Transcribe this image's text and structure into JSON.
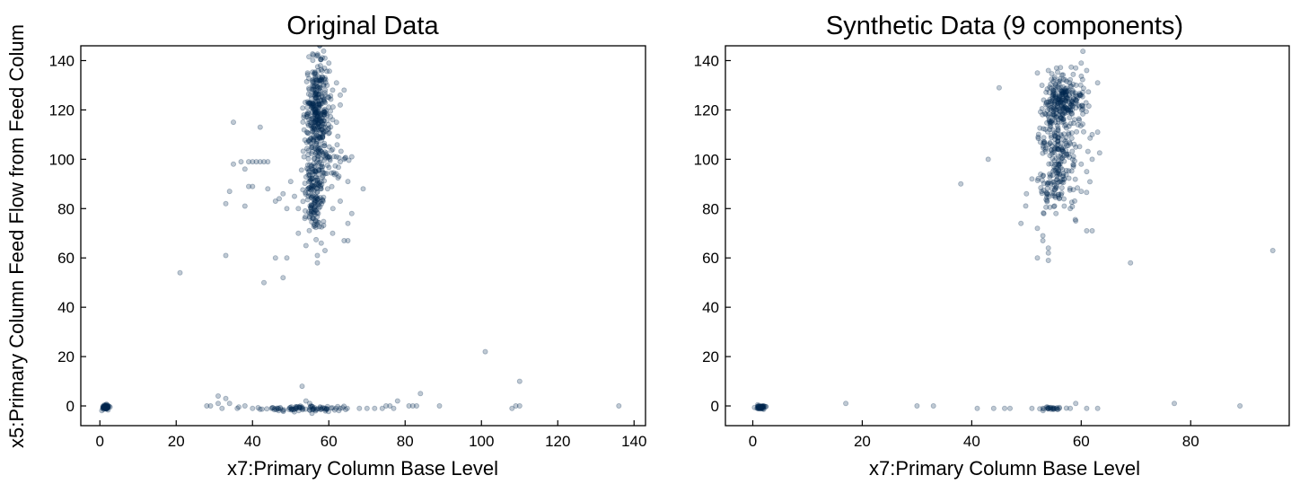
{
  "colors": {
    "point": "#00294f",
    "axis": "#000000",
    "background": "#ffffff"
  },
  "chart_data": [
    {
      "type": "scatter",
      "title": "Original Data",
      "xlabel": "x7:Primary Column Base Level",
      "ylabel": "x5:Primary Column Feed Flow from Feed Colum",
      "xlim": [
        -5,
        143
      ],
      "ylim": [
        -8,
        146
      ],
      "xticks": [
        "0",
        "20",
        "40",
        "60",
        "80",
        "100",
        "120",
        "140"
      ],
      "yticks": [
        "0",
        "20",
        "40",
        "60",
        "80",
        "100",
        "120",
        "140"
      ],
      "grid": false,
      "point_alpha": 0.25,
      "clusters": [
        {
          "x_mean": 1.5,
          "x_sd": 0.5,
          "y_mean": -0.5,
          "y_sd": 0.5,
          "n": 60
        },
        {
          "x_mean": 57,
          "x_sd": 1.6,
          "y_mean": 118,
          "y_sd": 11,
          "n": 380
        },
        {
          "x_mean": 56,
          "x_sd": 1.3,
          "y_mean": 88,
          "y_sd": 7,
          "n": 120
        },
        {
          "x_mean": 56.5,
          "x_sd": 1.0,
          "y_mean": 76,
          "y_sd": 3,
          "n": 30
        },
        {
          "x_mean": 61,
          "x_sd": 2.5,
          "y_mean": 98,
          "y_sd": 6,
          "n": 40
        },
        {
          "x_mean": 54,
          "x_sd": 6,
          "y_mean": -1,
          "y_sd": 0.6,
          "n": 90
        }
      ],
      "points": [
        [
          35,
          115
        ],
        [
          42,
          113
        ],
        [
          35,
          98
        ],
        [
          37,
          99
        ],
        [
          39,
          99
        ],
        [
          40,
          99
        ],
        [
          41,
          99
        ],
        [
          42,
          99
        ],
        [
          43,
          99
        ],
        [
          44,
          99
        ],
        [
          38,
          96
        ],
        [
          39,
          89
        ],
        [
          40,
          89
        ],
        [
          38,
          81
        ],
        [
          33,
          82
        ],
        [
          34,
          87
        ],
        [
          44,
          88
        ],
        [
          46,
          83
        ],
        [
          47,
          84
        ],
        [
          48,
          86
        ],
        [
          50,
          91
        ],
        [
          51,
          85
        ],
        [
          52,
          80
        ],
        [
          49,
          80
        ],
        [
          61,
          104
        ],
        [
          62,
          101
        ],
        [
          63,
          99
        ],
        [
          64,
          100
        ],
        [
          65,
          91
        ],
        [
          66,
          101
        ],
        [
          69,
          88
        ],
        [
          66,
          78
        ],
        [
          65,
          74
        ],
        [
          63,
          83
        ],
        [
          59,
          126
        ],
        [
          60,
          125
        ],
        [
          61,
          116
        ],
        [
          61,
          128
        ],
        [
          62,
          115
        ],
        [
          62,
          131
        ],
        [
          63,
          122
        ],
        [
          64,
          128
        ],
        [
          63,
          126
        ],
        [
          59,
          133
        ],
        [
          60,
          139
        ],
        [
          59,
          127
        ],
        [
          21,
          54
        ],
        [
          33,
          61
        ],
        [
          43,
          50
        ],
        [
          46,
          60
        ],
        [
          48,
          52
        ],
        [
          49,
          60
        ],
        [
          52,
          70
        ],
        [
          54,
          65
        ],
        [
          55,
          78
        ],
        [
          56,
          76
        ],
        [
          57,
          58
        ],
        [
          58,
          66
        ],
        [
          59,
          63
        ],
        [
          61,
          70
        ],
        [
          64,
          67
        ],
        [
          65,
          67
        ],
        [
          57,
          61
        ],
        [
          101,
          22
        ],
        [
          110,
          10
        ],
        [
          53,
          8
        ],
        [
          54,
          2
        ],
        [
          55,
          1
        ],
        [
          31,
          4
        ],
        [
          33,
          3
        ],
        [
          34,
          1
        ],
        [
          31,
          1
        ],
        [
          29,
          0
        ],
        [
          28,
          0
        ],
        [
          32,
          -1
        ],
        [
          36,
          -1
        ],
        [
          38,
          0
        ],
        [
          40,
          -1
        ],
        [
          45,
          -1
        ],
        [
          68,
          -1
        ],
        [
          70,
          -1
        ],
        [
          72,
          -1
        ],
        [
          74,
          -1
        ],
        [
          75,
          0
        ],
        [
          78,
          2
        ],
        [
          81,
          0
        ],
        [
          82,
          0
        ],
        [
          83,
          0
        ],
        [
          84,
          5
        ],
        [
          89,
          0
        ],
        [
          108,
          -1
        ],
        [
          109,
          0
        ],
        [
          110,
          0
        ],
        [
          136,
          0
        ],
        [
          77,
          -1
        ],
        [
          76,
          0
        ]
      ]
    },
    {
      "type": "scatter",
      "title": "Synthetic Data (9 components)",
      "xlabel": "x7:Primary Column Base Level",
      "ylabel": "",
      "xlim": [
        -5,
        98
      ],
      "ylim": [
        -8,
        146
      ],
      "xticks": [
        "0",
        "20",
        "40",
        "60",
        "80"
      ],
      "yticks": [
        "0",
        "20",
        "40",
        "60",
        "80",
        "100",
        "120",
        "140"
      ],
      "grid": false,
      "point_alpha": 0.25,
      "clusters": [
        {
          "x_mean": 1.5,
          "x_sd": 0.5,
          "y_mean": -0.5,
          "y_sd": 0.5,
          "n": 50
        },
        {
          "x_mean": 57,
          "x_sd": 1.8,
          "y_mean": 124,
          "y_sd": 5,
          "n": 220
        },
        {
          "x_mean": 55.5,
          "x_sd": 1.5,
          "y_mean": 105,
          "y_sd": 10,
          "n": 160
        },
        {
          "x_mean": 55,
          "x_sd": 1.5,
          "y_mean": 88,
          "y_sd": 5,
          "n": 60
        },
        {
          "x_mean": 57,
          "x_sd": 2.5,
          "y_mean": 105,
          "y_sd": 12,
          "n": 70
        },
        {
          "x_mean": 55,
          "x_sd": 1.2,
          "y_mean": -1,
          "y_sd": 0.3,
          "n": 25
        }
      ],
      "points": [
        [
          52,
          135
        ],
        [
          54,
          136
        ],
        [
          45,
          129
        ],
        [
          61,
          136
        ],
        [
          63,
          131
        ],
        [
          60,
          139
        ],
        [
          59,
          137
        ],
        [
          43,
          100
        ],
        [
          38,
          90
        ],
        [
          50,
          86
        ],
        [
          51,
          92
        ],
        [
          49,
          74
        ],
        [
          52,
          72
        ],
        [
          53,
          69
        ],
        [
          53,
          67
        ],
        [
          54,
          62
        ],
        [
          54,
          59
        ],
        [
          52,
          60
        ],
        [
          58,
          80
        ],
        [
          59,
          75
        ],
        [
          61,
          71
        ],
        [
          62,
          71
        ],
        [
          60,
          87
        ],
        [
          61,
          95
        ],
        [
          62,
          110
        ],
        [
          63,
          111
        ],
        [
          62,
          100
        ],
        [
          60,
          98
        ],
        [
          95,
          63
        ],
        [
          69,
          58
        ],
        [
          54,
          64
        ],
        [
          17,
          1
        ],
        [
          30,
          0
        ],
        [
          33,
          0
        ],
        [
          41,
          -1
        ],
        [
          44,
          -1
        ],
        [
          46,
          -1
        ],
        [
          47,
          -1
        ],
        [
          51,
          -1
        ],
        [
          53,
          -1
        ],
        [
          56,
          -1
        ],
        [
          58,
          -1
        ],
        [
          59,
          1
        ],
        [
          61,
          -1
        ],
        [
          63,
          -1
        ],
        [
          77,
          1
        ],
        [
          89,
          0
        ]
      ]
    }
  ]
}
